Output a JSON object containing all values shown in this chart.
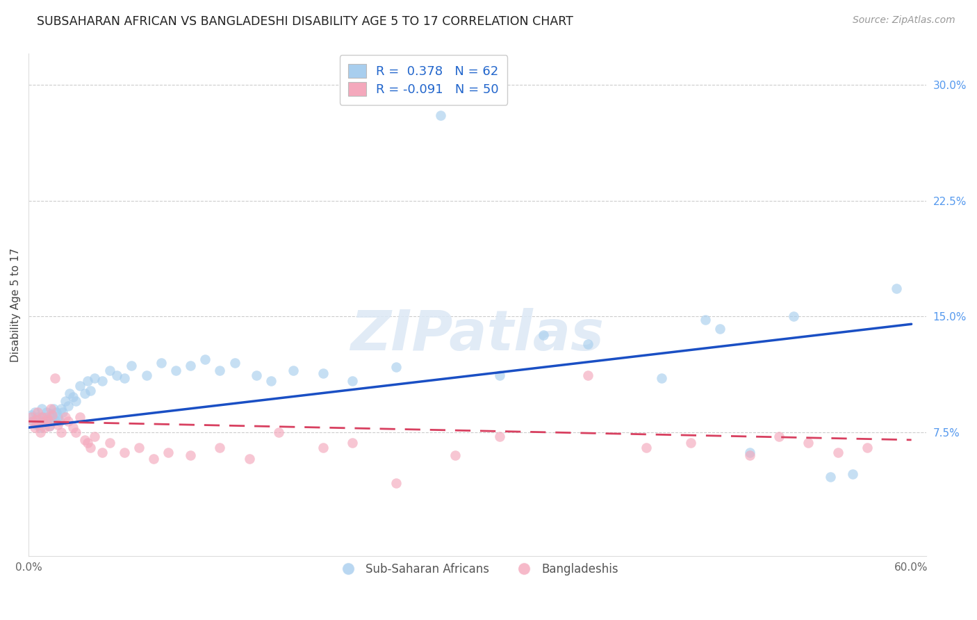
{
  "title": "SUBSAHARAN AFRICAN VS BANGLADESHI DISABILITY AGE 5 TO 17 CORRELATION CHART",
  "source": "Source: ZipAtlas.com",
  "ylabel": "Disability Age 5 to 17",
  "xlim": [
    0.0,
    0.61
  ],
  "ylim": [
    -0.005,
    0.32
  ],
  "yticks": [
    0.075,
    0.15,
    0.225,
    0.3
  ],
  "yticklabels": [
    "7.5%",
    "15.0%",
    "22.5%",
    "30.0%"
  ],
  "R_blue": 0.378,
  "N_blue": 62,
  "R_pink": -0.091,
  "N_pink": 50,
  "blue_scatter_color": "#A8CEEE",
  "pink_scatter_color": "#F4A8BC",
  "blue_line_color": "#1A4FC4",
  "pink_line_color": "#D84060",
  "watermark": "ZIPatlas",
  "legend_blue_label": "Sub-Saharan Africans",
  "legend_pink_label": "Bangladeshis",
  "blue_x": [
    0.002,
    0.003,
    0.004,
    0.005,
    0.006,
    0.007,
    0.008,
    0.009,
    0.01,
    0.011,
    0.012,
    0.013,
    0.014,
    0.015,
    0.016,
    0.017,
    0.018,
    0.019,
    0.02,
    0.021,
    0.022,
    0.023,
    0.025,
    0.027,
    0.028,
    0.03,
    0.032,
    0.035,
    0.038,
    0.04,
    0.042,
    0.045,
    0.05,
    0.055,
    0.06,
    0.065,
    0.07,
    0.08,
    0.09,
    0.1,
    0.11,
    0.12,
    0.13,
    0.14,
    0.155,
    0.165,
    0.18,
    0.2,
    0.22,
    0.25,
    0.28,
    0.32,
    0.35,
    0.38,
    0.43,
    0.46,
    0.47,
    0.49,
    0.52,
    0.545,
    0.56,
    0.59
  ],
  "blue_y": [
    0.086,
    0.082,
    0.088,
    0.08,
    0.085,
    0.083,
    0.078,
    0.09,
    0.085,
    0.082,
    0.088,
    0.083,
    0.079,
    0.087,
    0.085,
    0.09,
    0.083,
    0.088,
    0.085,
    0.082,
    0.09,
    0.088,
    0.095,
    0.092,
    0.1,
    0.098,
    0.095,
    0.105,
    0.1,
    0.108,
    0.102,
    0.11,
    0.108,
    0.115,
    0.112,
    0.11,
    0.118,
    0.112,
    0.12,
    0.115,
    0.118,
    0.122,
    0.115,
    0.12,
    0.112,
    0.108,
    0.115,
    0.113,
    0.108,
    0.117,
    0.28,
    0.112,
    0.138,
    0.132,
    0.11,
    0.148,
    0.142,
    0.062,
    0.15,
    0.046,
    0.048,
    0.168
  ],
  "pink_x": [
    0.002,
    0.003,
    0.004,
    0.005,
    0.006,
    0.007,
    0.008,
    0.009,
    0.01,
    0.011,
    0.012,
    0.013,
    0.014,
    0.015,
    0.016,
    0.018,
    0.02,
    0.022,
    0.025,
    0.027,
    0.03,
    0.032,
    0.035,
    0.038,
    0.04,
    0.042,
    0.045,
    0.05,
    0.055,
    0.065,
    0.075,
    0.085,
    0.095,
    0.11,
    0.13,
    0.15,
    0.17,
    0.2,
    0.22,
    0.25,
    0.29,
    0.32,
    0.38,
    0.42,
    0.45,
    0.49,
    0.51,
    0.53,
    0.55,
    0.57
  ],
  "pink_y": [
    0.085,
    0.082,
    0.078,
    0.083,
    0.088,
    0.08,
    0.075,
    0.085,
    0.082,
    0.078,
    0.085,
    0.083,
    0.079,
    0.09,
    0.086,
    0.11,
    0.08,
    0.075,
    0.085,
    0.082,
    0.078,
    0.075,
    0.085,
    0.07,
    0.068,
    0.065,
    0.072,
    0.062,
    0.068,
    0.062,
    0.065,
    0.058,
    0.062,
    0.06,
    0.065,
    0.058,
    0.075,
    0.065,
    0.068,
    0.042,
    0.06,
    0.072,
    0.112,
    0.065,
    0.068,
    0.06,
    0.072,
    0.068,
    0.062,
    0.065
  ],
  "blue_trend_x": [
    0.0,
    0.6
  ],
  "blue_trend_y": [
    0.078,
    0.145
  ],
  "pink_trend_x": [
    0.0,
    0.6
  ],
  "pink_trend_y": [
    0.082,
    0.07
  ]
}
